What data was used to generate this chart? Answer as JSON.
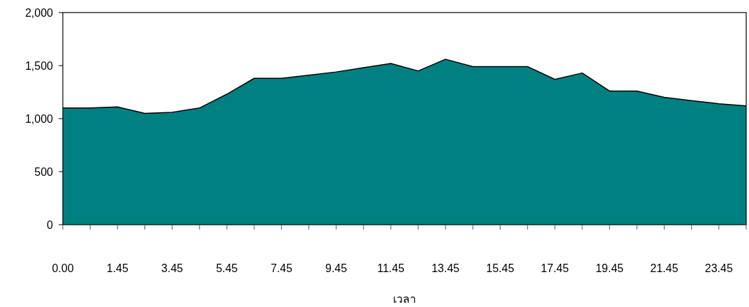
{
  "chart_data": {
    "type": "area",
    "xlabel": "เวลา",
    "categories": [
      "0.00",
      null,
      "1.45",
      null,
      "3.45",
      null,
      "5.45",
      null,
      "7.45",
      null,
      "9.45",
      null,
      "11.45",
      null,
      "13.45",
      null,
      "15.45",
      null,
      "17.45",
      null,
      "19.45",
      null,
      "21.45",
      null,
      "23.45",
      null
    ],
    "values": [
      1100,
      1100,
      1110,
      1050,
      1060,
      1100,
      1230,
      1380,
      1380,
      1410,
      1440,
      1480,
      1520,
      1450,
      1560,
      1490,
      1490,
      1490,
      1370,
      1430,
      1260,
      1260,
      1200,
      1170,
      1140,
      1120
    ],
    "color": "#008080",
    "ylim": [
      0,
      2000
    ],
    "yticks": [
      0,
      {
        "value": 500,
        "label": "500"
      },
      {
        "value": 1000,
        "label": "1,000"
      },
      {
        "value": 1500,
        "label": "1,500"
      },
      {
        "value": 2000,
        "label": "2,000"
      }
    ]
  }
}
